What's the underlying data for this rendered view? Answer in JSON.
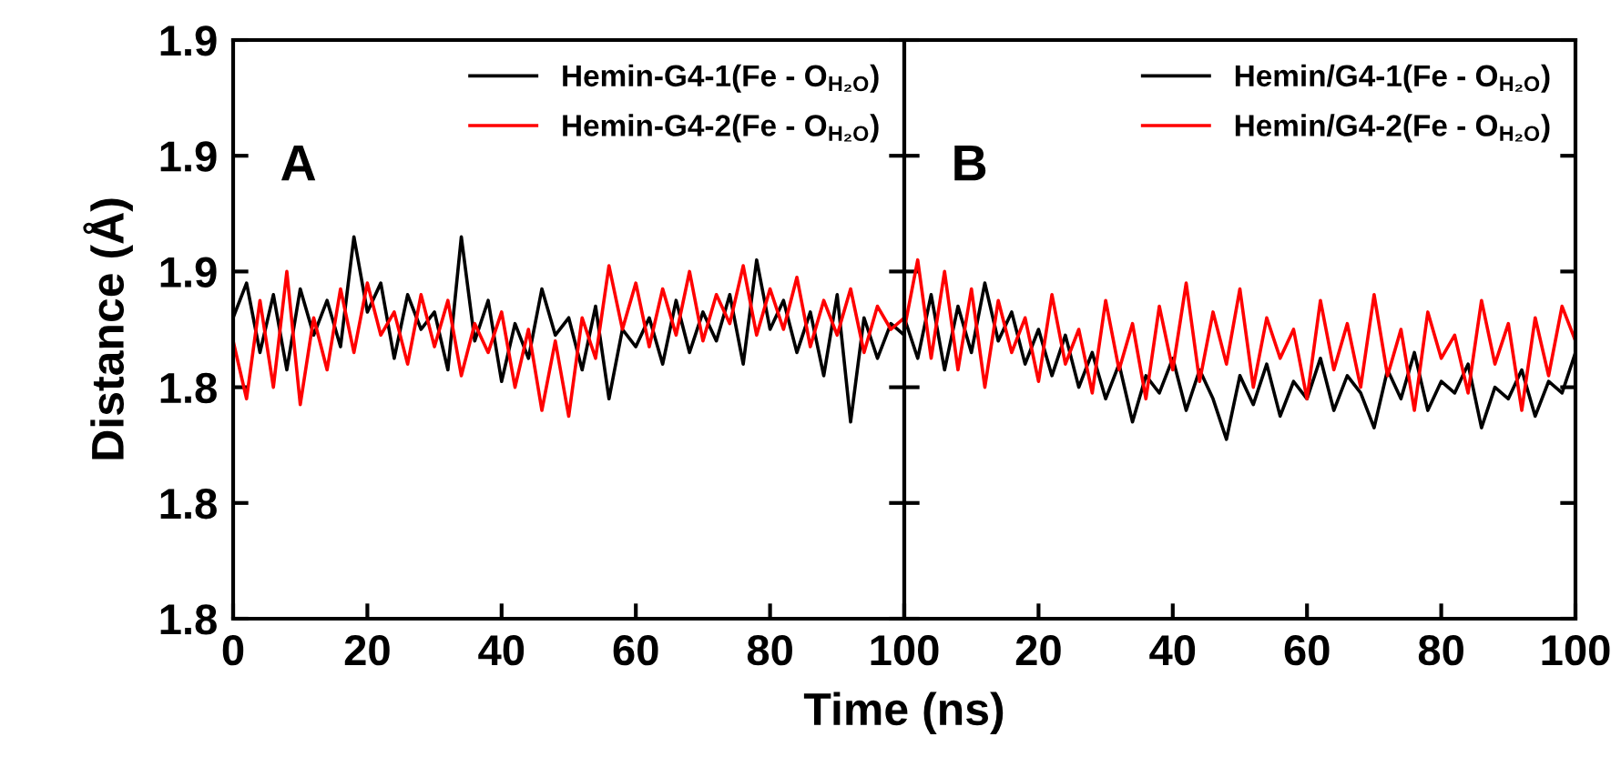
{
  "chart_data": [
    {
      "type": "line",
      "xlabel": "Time (ns)",
      "ylabel": "Distance (Å)",
      "annotations": [
        "A"
      ],
      "legend": "top right",
      "x": [
        0,
        2,
        4,
        6,
        8,
        10,
        12,
        14,
        16,
        18,
        20,
        22,
        24,
        26,
        28,
        30,
        32,
        34,
        36,
        38,
        40,
        42,
        44,
        46,
        48,
        50,
        52,
        54,
        56,
        58,
        60,
        62,
        64,
        66,
        68,
        70,
        72,
        74,
        76,
        78,
        80,
        82,
        84,
        86,
        88,
        90,
        92,
        94,
        96,
        98,
        100
      ],
      "xlim": [
        0,
        100
      ],
      "xticks": [
        0,
        20,
        40,
        60,
        80,
        100
      ],
      "ylim": [
        1.8,
        1.9
      ],
      "yticks": [
        {
          "value": 1.8,
          "label": "1.8"
        },
        {
          "value": 1.82,
          "label": "1.8"
        },
        {
          "value": 1.84,
          "label": "1.8"
        },
        {
          "value": 1.86,
          "label": "1.9"
        },
        {
          "value": 1.88,
          "label": "1.9"
        },
        {
          "value": 1.9,
          "label": "1.9"
        }
      ],
      "series": [
        {
          "name": "Hemin-G4-1(Fe - O$_{H₂O}$)",
          "color": "#000000",
          "values": [
            1.852,
            1.858,
            1.846,
            1.856,
            1.843,
            1.857,
            1.849,
            1.855,
            1.847,
            1.866,
            1.853,
            1.858,
            1.845,
            1.856,
            1.85,
            1.853,
            1.843,
            1.866,
            1.848,
            1.855,
            1.841,
            1.851,
            1.845,
            1.857,
            1.849,
            1.852,
            1.843,
            1.854,
            1.838,
            1.85,
            1.847,
            1.852,
            1.844,
            1.855,
            1.846,
            1.853,
            1.848,
            1.856,
            1.844,
            1.862,
            1.85,
            1.855,
            1.846,
            1.853,
            1.842,
            1.856,
            1.834,
            1.852,
            1.845,
            1.851,
            1.849
          ]
        },
        {
          "name": "Hemin-G4-2(Fe - O$_{H₂O}$)",
          "color": "#ff0000",
          "values": [
            1.848,
            1.838,
            1.855,
            1.84,
            1.86,
            1.837,
            1.852,
            1.843,
            1.857,
            1.846,
            1.858,
            1.849,
            1.853,
            1.844,
            1.856,
            1.847,
            1.855,
            1.842,
            1.851,
            1.846,
            1.853,
            1.84,
            1.85,
            1.836,
            1.848,
            1.835,
            1.852,
            1.845,
            1.861,
            1.85,
            1.858,
            1.847,
            1.857,
            1.849,
            1.86,
            1.848,
            1.856,
            1.851,
            1.861,
            1.849,
            1.857,
            1.85,
            1.859,
            1.847,
            1.855,
            1.849,
            1.857,
            1.846,
            1.854,
            1.85,
            1.852
          ]
        }
      ]
    },
    {
      "type": "line",
      "annotations": [
        "B"
      ],
      "legend": "top right",
      "tick_labels": "x",
      "x": [
        0,
        2,
        4,
        6,
        8,
        10,
        12,
        14,
        16,
        18,
        20,
        22,
        24,
        26,
        28,
        30,
        32,
        34,
        36,
        38,
        40,
        42,
        44,
        46,
        48,
        50,
        52,
        54,
        56,
        58,
        60,
        62,
        64,
        66,
        68,
        70,
        72,
        74,
        76,
        78,
        80,
        82,
        84,
        86,
        88,
        90,
        92,
        94,
        96,
        98,
        100
      ],
      "xlim": [
        0,
        100
      ],
      "xticks": [
        {
          "value": 0,
          "label": null
        },
        20,
        40,
        60,
        80,
        100
      ],
      "ylim": [
        1.8,
        1.9
      ],
      "yticks": [
        {
          "value": 1.8,
          "label": null
        },
        {
          "value": 1.82,
          "label": null
        },
        {
          "value": 1.84,
          "label": null
        },
        {
          "value": 1.86,
          "label": null
        },
        {
          "value": 1.88,
          "label": null
        },
        {
          "value": 1.9,
          "label": null
        }
      ],
      "series": [
        {
          "name": "Hemin/G4-1(Fe - O$_{H₂O}$)",
          "color": "#000000",
          "values": [
            1.852,
            1.845,
            1.856,
            1.843,
            1.854,
            1.846,
            1.858,
            1.848,
            1.853,
            1.844,
            1.85,
            1.842,
            1.849,
            1.84,
            1.846,
            1.838,
            1.844,
            1.834,
            1.842,
            1.839,
            1.845,
            1.836,
            1.843,
            1.838,
            1.831,
            1.842,
            1.837,
            1.844,
            1.835,
            1.841,
            1.838,
            1.845,
            1.836,
            1.842,
            1.839,
            1.833,
            1.843,
            1.838,
            1.846,
            1.836,
            1.841,
            1.839,
            1.844,
            1.833,
            1.84,
            1.838,
            1.843,
            1.835,
            1.841,
            1.839,
            1.846
          ]
        },
        {
          "name": "Hemin/G4-2(Fe - O$_{H₂O}$)",
          "color": "#ff0000",
          "values": [
            1.85,
            1.862,
            1.845,
            1.86,
            1.843,
            1.857,
            1.84,
            1.855,
            1.846,
            1.852,
            1.841,
            1.856,
            1.844,
            1.85,
            1.839,
            1.855,
            1.843,
            1.851,
            1.838,
            1.854,
            1.843,
            1.858,
            1.841,
            1.853,
            1.844,
            1.857,
            1.84,
            1.852,
            1.845,
            1.85,
            1.838,
            1.855,
            1.843,
            1.851,
            1.84,
            1.856,
            1.842,
            1.85,
            1.836,
            1.853,
            1.845,
            1.849,
            1.839,
            1.855,
            1.844,
            1.851,
            1.836,
            1.852,
            1.842,
            1.854,
            1.848
          ]
        }
      ]
    }
  ]
}
